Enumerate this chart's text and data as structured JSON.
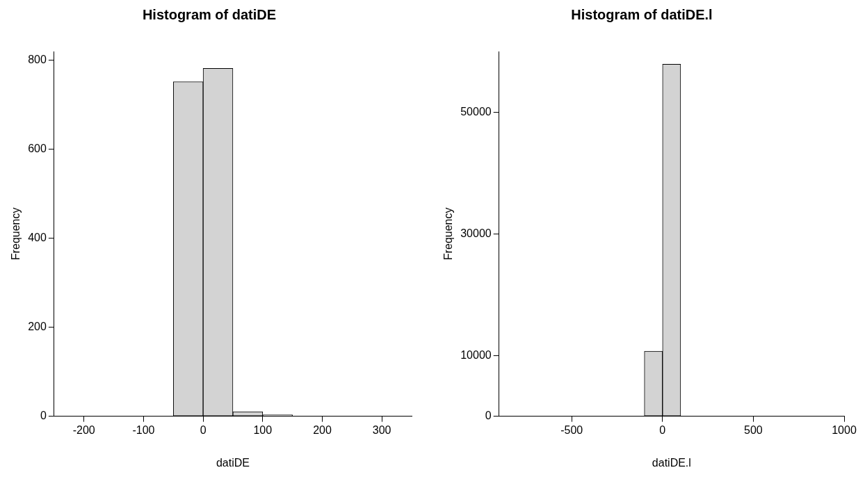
{
  "chart_data": [
    {
      "type": "histogram",
      "title": "Histogram of datiDE",
      "xlabel": "datiDE",
      "ylabel": "Frequency",
      "bins": [
        -250,
        -200,
        -150,
        -100,
        -50,
        0,
        50,
        100,
        150,
        200,
        250,
        300,
        350
      ],
      "values": [
        0,
        0,
        0,
        0,
        752,
        782,
        10,
        3,
        0,
        0,
        0,
        0
      ],
      "color": "#d3d3d3",
      "xlim": [
        -250,
        350
      ],
      "ylim": [
        0,
        820
      ],
      "xticks": [
        -200,
        -100,
        0,
        100,
        200,
        300
      ],
      "yticks": [
        0,
        200,
        400,
        600,
        800
      ],
      "grid": false
    },
    {
      "type": "histogram",
      "title": "Histogram of datiDE.l",
      "xlabel": "datiDE.l",
      "ylabel": "Frequency",
      "bins": [
        -900,
        -800,
        -700,
        -600,
        -500,
        -400,
        -300,
        -200,
        -100,
        0,
        100,
        200,
        300,
        400,
        500,
        600,
        700,
        800,
        900,
        1000
      ],
      "values": [
        0,
        0,
        0,
        0,
        0,
        0,
        0,
        0,
        10700,
        57900,
        0,
        0,
        0,
        0,
        0,
        0,
        0,
        0,
        0
      ],
      "color": "#d3d3d3",
      "xlim": [
        -900,
        1000
      ],
      "ylim": [
        0,
        60000
      ],
      "xticks": [
        -500,
        0,
        500,
        1000
      ],
      "yticks": [
        0,
        10000,
        30000,
        50000
      ],
      "grid": false
    }
  ]
}
